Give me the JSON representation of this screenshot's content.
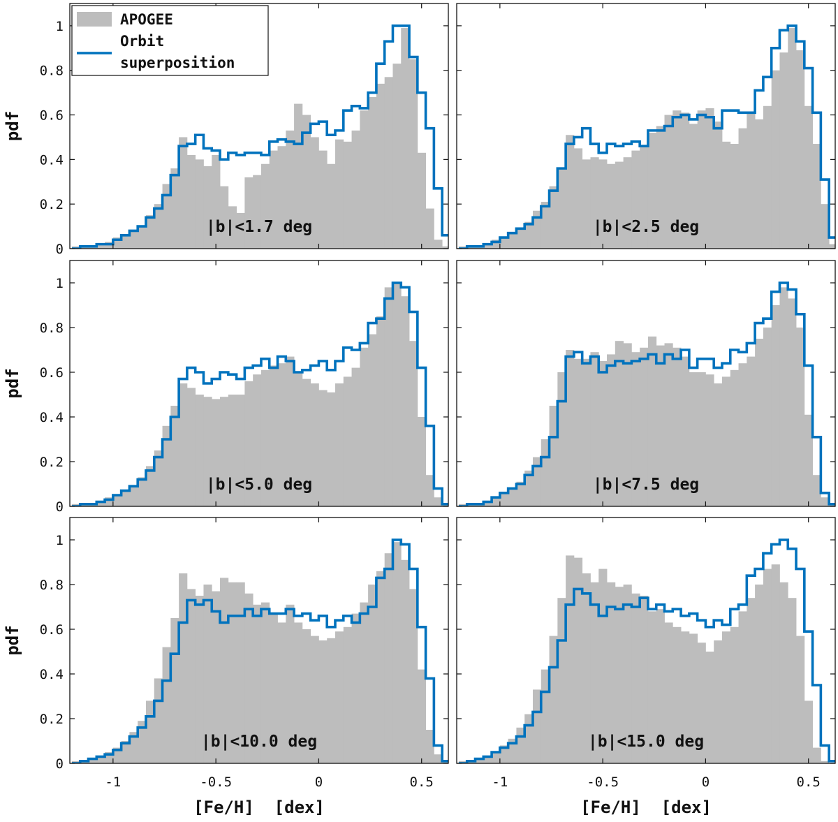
{
  "chart_data": {
    "type": "bar",
    "layout": "3 rows x 2 columns, shared x and y axes",
    "xlabel": "[Fe/H]  [dex]",
    "ylabel": "pdf",
    "xlim": [
      -1.21,
      0.63
    ],
    "ylim": [
      0,
      1.1
    ],
    "xticks": [
      -1,
      -0.5,
      0,
      0.5
    ],
    "xtick_labels": [
      "-1",
      "-0.5",
      "0",
      "0.5"
    ],
    "yticks": [
      0,
      0.2,
      0.4,
      0.6,
      0.8,
      1
    ],
    "ytick_labels": [
      "0",
      "0.2",
      "0.4",
      "0.6",
      "0.8",
      "1"
    ],
    "bin_edges_start": -1.2,
    "bin_width": 0.04,
    "n_bins": 46,
    "legend": {
      "position": "top-left of first panel",
      "entries": [
        {
          "label": "APOGEE",
          "style": "filled gray bars",
          "color": "#bdbdbd"
        },
        {
          "label": "Orbit superposition",
          "label_lines": [
            "Orbit",
            "superposition"
          ],
          "style": "blue step line",
          "color": "#0072bd"
        }
      ]
    },
    "panels": [
      {
        "label": "|b|<1.7 deg",
        "apogee": [
          0.01,
          0.01,
          0.01,
          0.02,
          0.03,
          0.05,
          0.06,
          0.08,
          0.1,
          0.15,
          0.2,
          0.29,
          0.36,
          0.5,
          0.42,
          0.4,
          0.37,
          0.42,
          0.28,
          0.19,
          0.16,
          0.32,
          0.33,
          0.38,
          0.44,
          0.46,
          0.53,
          0.65,
          0.6,
          0.5,
          0.44,
          0.38,
          0.49,
          0.48,
          0.53,
          0.62,
          0.68,
          0.74,
          0.77,
          0.83,
          0.99,
          0.85,
          0.43,
          0.18,
          0.04,
          0.01
        ],
        "model": [
          0.0,
          0.01,
          0.01,
          0.02,
          0.02,
          0.04,
          0.06,
          0.08,
          0.1,
          0.14,
          0.18,
          0.24,
          0.33,
          0.46,
          0.47,
          0.51,
          0.45,
          0.44,
          0.4,
          0.43,
          0.42,
          0.43,
          0.43,
          0.42,
          0.48,
          0.49,
          0.48,
          0.47,
          0.52,
          0.56,
          0.57,
          0.51,
          0.53,
          0.62,
          0.64,
          0.63,
          0.7,
          0.83,
          0.93,
          1.0,
          1.0,
          0.86,
          0.7,
          0.54,
          0.27,
          0.06
        ]
      },
      {
        "label": "|b|<2.5 deg",
        "apogee": [
          0.01,
          0.01,
          0.01,
          0.02,
          0.04,
          0.05,
          0.07,
          0.09,
          0.12,
          0.17,
          0.21,
          0.28,
          0.36,
          0.51,
          0.45,
          0.4,
          0.41,
          0.4,
          0.38,
          0.39,
          0.41,
          0.44,
          0.46,
          0.52,
          0.55,
          0.6,
          0.62,
          0.61,
          0.56,
          0.62,
          0.63,
          0.57,
          0.48,
          0.47,
          0.54,
          0.61,
          0.58,
          0.64,
          0.8,
          0.88,
          0.99,
          0.89,
          0.64,
          0.47,
          0.2,
          0.02
        ],
        "model": [
          0.0,
          0.01,
          0.01,
          0.02,
          0.03,
          0.05,
          0.07,
          0.09,
          0.11,
          0.14,
          0.19,
          0.26,
          0.36,
          0.47,
          0.5,
          0.54,
          0.47,
          0.43,
          0.47,
          0.46,
          0.47,
          0.48,
          0.46,
          0.53,
          0.53,
          0.55,
          0.59,
          0.6,
          0.58,
          0.6,
          0.59,
          0.54,
          0.62,
          0.62,
          0.61,
          0.61,
          0.71,
          0.77,
          0.9,
          0.98,
          1.0,
          0.93,
          0.81,
          0.61,
          0.31,
          0.05
        ]
      },
      {
        "label": "|b|<5.0 deg",
        "apogee": [
          0.01,
          0.01,
          0.01,
          0.02,
          0.04,
          0.05,
          0.07,
          0.09,
          0.13,
          0.18,
          0.25,
          0.36,
          0.45,
          0.55,
          0.53,
          0.5,
          0.49,
          0.48,
          0.49,
          0.5,
          0.5,
          0.56,
          0.59,
          0.61,
          0.63,
          0.64,
          0.67,
          0.6,
          0.57,
          0.55,
          0.52,
          0.51,
          0.55,
          0.58,
          0.62,
          0.71,
          0.77,
          0.85,
          0.98,
          1.0,
          0.94,
          0.74,
          0.4,
          0.14,
          0.04,
          0.01
        ],
        "model": [
          0.0,
          0.01,
          0.01,
          0.02,
          0.03,
          0.05,
          0.07,
          0.09,
          0.12,
          0.16,
          0.22,
          0.3,
          0.4,
          0.57,
          0.62,
          0.6,
          0.55,
          0.57,
          0.6,
          0.59,
          0.57,
          0.62,
          0.63,
          0.66,
          0.62,
          0.67,
          0.65,
          0.6,
          0.61,
          0.63,
          0.65,
          0.61,
          0.65,
          0.71,
          0.7,
          0.73,
          0.82,
          0.84,
          0.93,
          1.0,
          0.98,
          0.87,
          0.62,
          0.36,
          0.08,
          0.01
        ]
      },
      {
        "label": "|b|<7.5 deg",
        "apogee": [
          0.01,
          0.01,
          0.01,
          0.02,
          0.04,
          0.06,
          0.08,
          0.11,
          0.16,
          0.22,
          0.3,
          0.45,
          0.6,
          0.7,
          0.66,
          0.66,
          0.69,
          0.65,
          0.68,
          0.74,
          0.73,
          0.69,
          0.71,
          0.76,
          0.72,
          0.73,
          0.71,
          0.67,
          0.6,
          0.6,
          0.59,
          0.55,
          0.58,
          0.61,
          0.64,
          0.67,
          0.75,
          0.8,
          0.9,
          0.98,
          0.93,
          0.8,
          0.41,
          0.14,
          0.04,
          0.01
        ],
        "model": [
          0.0,
          0.01,
          0.01,
          0.02,
          0.04,
          0.06,
          0.08,
          0.1,
          0.14,
          0.18,
          0.22,
          0.31,
          0.47,
          0.67,
          0.69,
          0.64,
          0.67,
          0.6,
          0.63,
          0.65,
          0.64,
          0.65,
          0.66,
          0.68,
          0.64,
          0.68,
          0.66,
          0.7,
          0.62,
          0.66,
          0.66,
          0.62,
          0.64,
          0.7,
          0.69,
          0.73,
          0.82,
          0.84,
          0.96,
          1.0,
          0.97,
          0.86,
          0.63,
          0.31,
          0.06,
          0.01
        ]
      },
      {
        "label": "|b|<10.0 deg",
        "apogee": [
          0.01,
          0.01,
          0.02,
          0.03,
          0.05,
          0.07,
          0.1,
          0.14,
          0.19,
          0.28,
          0.38,
          0.52,
          0.65,
          0.85,
          0.78,
          0.75,
          0.8,
          0.77,
          0.83,
          0.81,
          0.81,
          0.76,
          0.71,
          0.72,
          0.67,
          0.63,
          0.71,
          0.63,
          0.6,
          0.57,
          0.55,
          0.56,
          0.59,
          0.61,
          0.67,
          0.72,
          0.8,
          0.86,
          0.94,
          0.99,
          0.91,
          0.78,
          0.42,
          0.15,
          0.04,
          0.01
        ],
        "model": [
          0.0,
          0.01,
          0.02,
          0.03,
          0.04,
          0.06,
          0.09,
          0.12,
          0.16,
          0.21,
          0.28,
          0.37,
          0.49,
          0.63,
          0.73,
          0.71,
          0.73,
          0.68,
          0.63,
          0.66,
          0.66,
          0.69,
          0.66,
          0.69,
          0.67,
          0.67,
          0.69,
          0.66,
          0.67,
          0.64,
          0.66,
          0.61,
          0.64,
          0.66,
          0.63,
          0.67,
          0.7,
          0.83,
          0.87,
          1.0,
          0.98,
          0.87,
          0.61,
          0.38,
          0.08,
          0.01
        ]
      },
      {
        "label": "|b|<15.0 deg",
        "apogee": [
          0.01,
          0.01,
          0.02,
          0.03,
          0.05,
          0.08,
          0.11,
          0.16,
          0.22,
          0.33,
          0.42,
          0.57,
          0.74,
          0.93,
          0.92,
          0.85,
          0.81,
          0.87,
          0.81,
          0.79,
          0.8,
          0.76,
          0.75,
          0.68,
          0.69,
          0.63,
          0.61,
          0.59,
          0.58,
          0.54,
          0.5,
          0.55,
          0.59,
          0.61,
          0.68,
          0.74,
          0.8,
          0.87,
          0.89,
          0.81,
          0.74,
          0.57,
          0.28,
          0.07,
          0.01,
          0.0
        ],
        "model": [
          0.0,
          0.01,
          0.02,
          0.03,
          0.05,
          0.07,
          0.09,
          0.12,
          0.17,
          0.23,
          0.32,
          0.43,
          0.55,
          0.71,
          0.78,
          0.76,
          0.71,
          0.66,
          0.7,
          0.69,
          0.71,
          0.7,
          0.74,
          0.69,
          0.71,
          0.68,
          0.69,
          0.66,
          0.67,
          0.64,
          0.61,
          0.64,
          0.62,
          0.69,
          0.71,
          0.84,
          0.87,
          0.94,
          0.98,
          1.0,
          0.96,
          0.87,
          0.59,
          0.35,
          0.08,
          0.01
        ]
      }
    ]
  }
}
